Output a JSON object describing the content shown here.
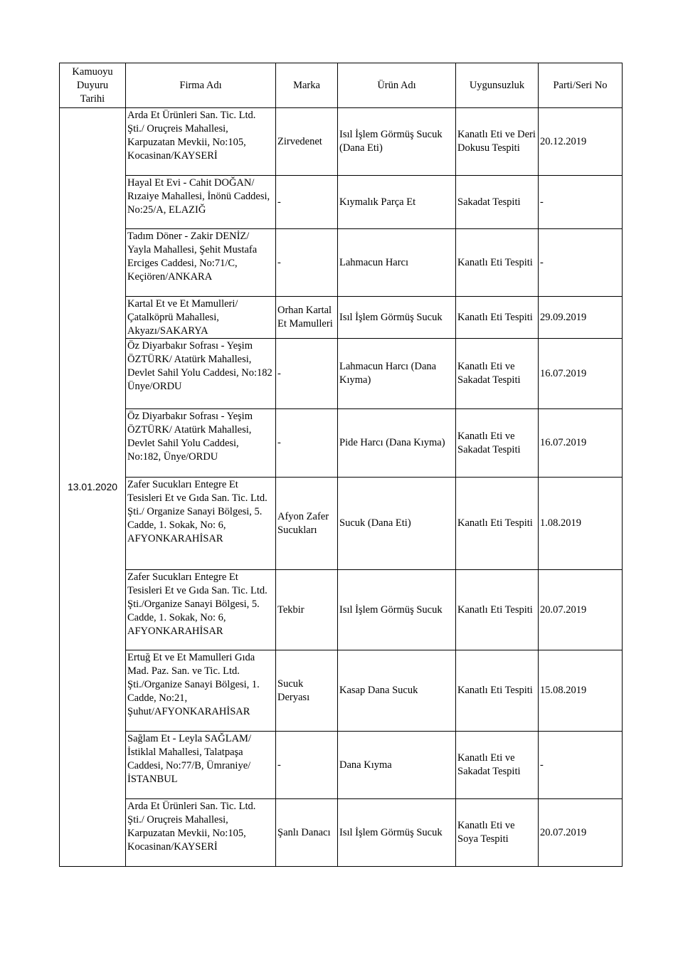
{
  "headers": [
    "Kamuoyu Duyuru Tarihi",
    "Firma Adı",
    "Marka",
    "Ürün Adı",
    "Uygunsuzluk",
    "Parti/Seri No"
  ],
  "date": "13.01.2020",
  "rows": [
    {
      "firma": "Arda Et Ürünleri San. Tic. Ltd. Şti./ Oruçreis Mahallesi, Karpuzatan Mevkii, No:105, Kocasinan/KAYSERİ",
      "marka": "Zirvedenet",
      "urun": "Isıl İşlem Görmüş Sucuk (Dana Eti)",
      "uygunsuzluk": "Kanatlı Eti ve Deri Dokusu Tespiti",
      "parti": "20.12.2019"
    },
    {
      "firma": "Hayal Et Evi - Cahit DOĞAN/ Rızaiye Mahallesi, İnönü Caddesi, No:25/A, ELAZIĞ",
      "marka": "-",
      "urun": "Kıymalık Parça Et",
      "uygunsuzluk": "Sakadat Tespiti",
      "parti": "-"
    },
    {
      "firma": "Tadım Döner - Zakir DENİZ/ Yayla Mahallesi, Şehit Mustafa Erciges Caddesi, No:71/C, Keçiören/ANKARA",
      "marka": "-",
      "urun": "Lahmacun Harcı",
      "uygunsuzluk": "Kanatlı Eti Tespiti",
      "parti": "-"
    },
    {
      "firma": "Kartal Et ve Et Mamulleri/ Çatalköprü Mahallesi, Akyazı/SAKARYA",
      "marka": "Orhan Kartal Et Mamulleri",
      "urun": "Isıl İşlem Görmüş Sucuk",
      "uygunsuzluk": "Kanatlı Eti Tespiti",
      "parti": "29.09.2019"
    },
    {
      "firma": "Öz Diyarbakır Sofrası - Yeşim ÖZTÜRK/ Atatürk Mahallesi, Devlet Sahil Yolu Caddesi, No:182 Ünye/ORDU",
      "marka": "-",
      "urun": "Lahmacun Harcı (Dana Kıyma)",
      "uygunsuzluk": "Kanatlı Eti ve Sakadat Tespiti",
      "parti": "16.07.2019"
    },
    {
      "firma": "Öz Diyarbakır Sofrası - Yeşim ÖZTÜRK/ Atatürk Mahallesi, Devlet Sahil Yolu Caddesi, No:182, Ünye/ORDU",
      "marka": "-",
      "urun": "Pide Harcı (Dana Kıyma)",
      "uygunsuzluk": "Kanatlı Eti ve Sakadat Tespiti",
      "parti": "16.07.2019"
    },
    {
      "firma": "Zafer Sucukları Entegre Et Tesisleri Et ve Gıda San. Tic. Ltd. Şti./ Organize Sanayi Bölgesi, 5. Cadde, 1. Sokak, No: 6, AFYONKARAHİSAR",
      "marka": "Afyon Zafer Sucukları",
      "urun": "Sucuk (Dana Eti)",
      "uygunsuzluk": "Kanatlı Eti Tespiti",
      "parti": "1.08.2019"
    },
    {
      "firma": "Zafer Sucukları Entegre Et Tesisleri Et ve Gıda San. Tic. Ltd. Şti./Organize Sanayi Bölgesi, 5. Cadde, 1. Sokak, No: 6, AFYONKARAHİSAR",
      "marka": "Tekbir",
      "urun": "Isıl İşlem Görmüş Sucuk",
      "uygunsuzluk": "Kanatlı Eti Tespiti",
      "parti": "20.07.2019"
    },
    {
      "firma": "Ertuğ Et ve Et Mamulleri Gıda Mad. Paz. San. ve Tic. Ltd. Şti./Organize Sanayi Bölgesi, 1. Cadde, No:21, Şuhut/AFYONKARAHİSAR",
      "marka": "Sucuk Deryası",
      "urun": "Kasap Dana Sucuk",
      "uygunsuzluk": "Kanatlı Eti Tespiti",
      "parti": "15.08.2019"
    },
    {
      "firma": "Sağlam Et - Leyla SAĞLAM/ İstiklal Mahallesi, Talatpaşa Caddesi, No:77/B, Ümraniye/İSTANBUL",
      "marka": "-",
      "urun": "Dana Kıyma",
      "uygunsuzluk": "Kanatlı Eti ve Sakadat Tespiti",
      "parti": "-"
    },
    {
      "firma": "Arda Et Ürünleri San. Tic. Ltd. Şti./ Oruçreis Mahallesi, Karpuzatan Mevkii, No:105, Kocasinan/KAYSERİ",
      "marka": "Şanlı Danacı",
      "urun": "Isıl İşlem Görmüş Sucuk",
      "uygunsuzluk": "Kanatlı Eti ve Soya Tespiti",
      "parti": "20.07.2019"
    }
  ]
}
